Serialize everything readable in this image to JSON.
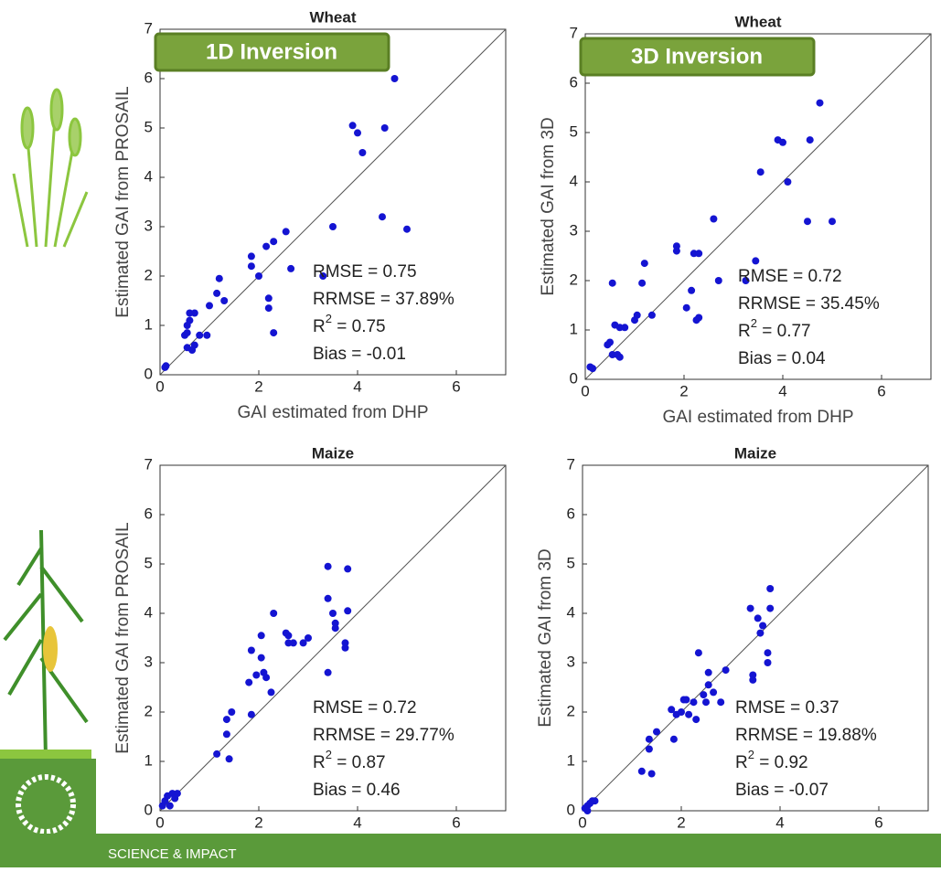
{
  "chart_data": [
    {
      "type": "scatter",
      "title": "Wheat",
      "badge": "1D Inversion",
      "xlabel": "GAI estimated from DHP",
      "ylabel": "Estimated GAI from PROSAIL",
      "color": "#1414d2",
      "x": [
        0.1,
        0.12,
        0.5,
        0.55,
        0.55,
        0.6,
        0.55,
        0.65,
        0.7,
        0.6,
        0.7,
        0.8,
        1.0,
        0.95,
        1.15,
        1.2,
        1.3,
        1.85,
        1.85,
        2.0,
        2.15,
        2.3,
        2.55,
        2.2,
        2.2,
        2.3,
        2.65,
        3.3,
        3.5,
        3.9,
        4.0,
        4.1,
        4.5,
        4.55,
        4.75,
        5.0
      ],
      "values": [
        0.15,
        0.18,
        0.8,
        0.85,
        1.0,
        1.1,
        0.55,
        0.5,
        0.6,
        1.25,
        1.25,
        0.8,
        1.4,
        0.8,
        1.65,
        1.95,
        1.5,
        2.4,
        2.2,
        2.0,
        2.6,
        2.7,
        2.9,
        1.55,
        1.35,
        0.85,
        2.15,
        2.0,
        3.0,
        5.05,
        4.9,
        4.5,
        3.2,
        5.0,
        6.0,
        2.95
      ],
      "xlim": [
        0,
        7
      ],
      "ylim": [
        0,
        7
      ],
      "xticks": [
        0,
        2,
        4,
        6
      ],
      "yticks": [
        0,
        1,
        2,
        3,
        4,
        5,
        6,
        7
      ],
      "stats": [
        "RMSE = 0.75",
        "RRMSE = 37.89%",
        [
          "R",
          "2",
          " = 0.75"
        ],
        "Bias = -0.01"
      ]
    },
    {
      "type": "scatter",
      "title": "Wheat",
      "badge": "3D Inversion",
      "xlabel": "GAI estimated from DHP",
      "ylabel": "Estimated GAI from 3D",
      "color": "#1414d2",
      "x": [
        0.1,
        0.15,
        0.45,
        0.5,
        0.55,
        0.6,
        0.55,
        0.65,
        0.7,
        0.7,
        0.8,
        1.0,
        1.05,
        1.15,
        1.2,
        1.35,
        1.85,
        1.85,
        2.05,
        2.2,
        2.3,
        2.15,
        2.25,
        2.3,
        2.6,
        2.7,
        3.25,
        3.45,
        3.55,
        3.9,
        4.0,
        4.1,
        4.5,
        4.55,
        4.75,
        5.0
      ],
      "values": [
        0.25,
        0.22,
        0.7,
        0.75,
        1.95,
        1.1,
        0.5,
        0.5,
        0.45,
        1.05,
        1.05,
        1.2,
        1.3,
        1.95,
        2.35,
        1.3,
        2.6,
        2.7,
        1.45,
        2.55,
        2.55,
        1.8,
        1.2,
        1.25,
        3.25,
        2.0,
        2.0,
        2.4,
        4.2,
        4.85,
        4.8,
        4.0,
        3.2,
        4.85,
        5.6,
        3.2
      ],
      "xlim": [
        0,
        7
      ],
      "ylim": [
        0,
        7
      ],
      "xticks": [
        0,
        2,
        4,
        6
      ],
      "yticks": [
        0,
        1,
        2,
        3,
        4,
        5,
        6,
        7
      ],
      "stats": [
        "RMSE = 0.72",
        "RRMSE = 35.45%",
        [
          "R",
          "2",
          " = 0.77"
        ],
        "Bias = 0.04"
      ]
    },
    {
      "type": "scatter",
      "title": "Maize",
      "ylabel": "Estimated GAI from PROSAIL",
      "color": "#1414d2",
      "x": [
        0.05,
        0.1,
        0.15,
        0.2,
        0.25,
        0.3,
        0.35,
        1.15,
        1.35,
        1.35,
        1.4,
        1.45,
        1.8,
        1.85,
        1.85,
        1.95,
        2.05,
        2.05,
        2.1,
        2.15,
        2.25,
        2.3,
        2.55,
        2.6,
        2.6,
        2.7,
        2.9,
        3.0,
        3.4,
        3.4,
        3.4,
        3.5,
        3.55,
        3.55,
        3.75,
        3.75,
        3.8,
        3.8
      ],
      "values": [
        0.1,
        0.2,
        0.3,
        0.1,
        0.35,
        0.25,
        0.35,
        1.15,
        1.55,
        1.85,
        1.05,
        2.0,
        2.6,
        1.95,
        3.25,
        2.75,
        3.1,
        3.55,
        2.8,
        2.7,
        2.4,
        4.0,
        3.6,
        3.55,
        3.4,
        3.4,
        3.4,
        3.5,
        2.8,
        4.95,
        4.3,
        4.0,
        3.8,
        3.7,
        3.4,
        3.3,
        4.9,
        4.05
      ],
      "xlim": [
        0,
        7
      ],
      "ylim": [
        0,
        7
      ],
      "xticks": [
        0,
        2,
        4,
        6
      ],
      "yticks": [
        0,
        1,
        2,
        3,
        4,
        5,
        6,
        7
      ],
      "stats": [
        "RMSE = 0.72",
        "RRMSE = 29.77%",
        [
          "R",
          "2",
          " = 0.87"
        ],
        "Bias = 0.46"
      ]
    },
    {
      "type": "scatter",
      "title": "Maize",
      "ylabel": "Estimated GAI from 3D",
      "color": "#1414d2",
      "x": [
        0.05,
        0.1,
        0.15,
        0.2,
        0.25,
        0.1,
        1.2,
        1.35,
        1.35,
        1.4,
        1.5,
        1.8,
        1.85,
        1.9,
        2.0,
        2.05,
        2.1,
        2.15,
        2.25,
        2.3,
        2.35,
        2.45,
        2.5,
        2.55,
        2.55,
        2.65,
        2.8,
        2.9,
        3.4,
        3.45,
        3.45,
        3.55,
        3.6,
        3.65,
        3.75,
        3.75,
        3.8,
        3.8
      ],
      "values": [
        0.05,
        0.1,
        0.15,
        0.2,
        0.2,
        0.0,
        0.8,
        1.25,
        1.45,
        0.75,
        1.6,
        2.05,
        1.45,
        1.95,
        2.0,
        2.25,
        2.25,
        1.95,
        2.2,
        1.85,
        3.2,
        2.35,
        2.2,
        2.8,
        2.55,
        2.4,
        2.2,
        2.85,
        4.1,
        2.75,
        2.65,
        3.9,
        3.6,
        3.75,
        3.0,
        3.2,
        4.5,
        4.1
      ],
      "xlim": [
        0,
        7
      ],
      "ylim": [
        0,
        7
      ],
      "xticks": [
        0,
        2,
        4,
        6
      ],
      "yticks": [
        0,
        1,
        2,
        3,
        4,
        5,
        6,
        7
      ],
      "stats": [
        "RMSE = 0.37",
        "RRMSE = 19.88%",
        [
          "R",
          "2",
          " = 0.92"
        ],
        "Bias = -0.07"
      ]
    }
  ],
  "footer": "SCIENCE & IMPACT"
}
